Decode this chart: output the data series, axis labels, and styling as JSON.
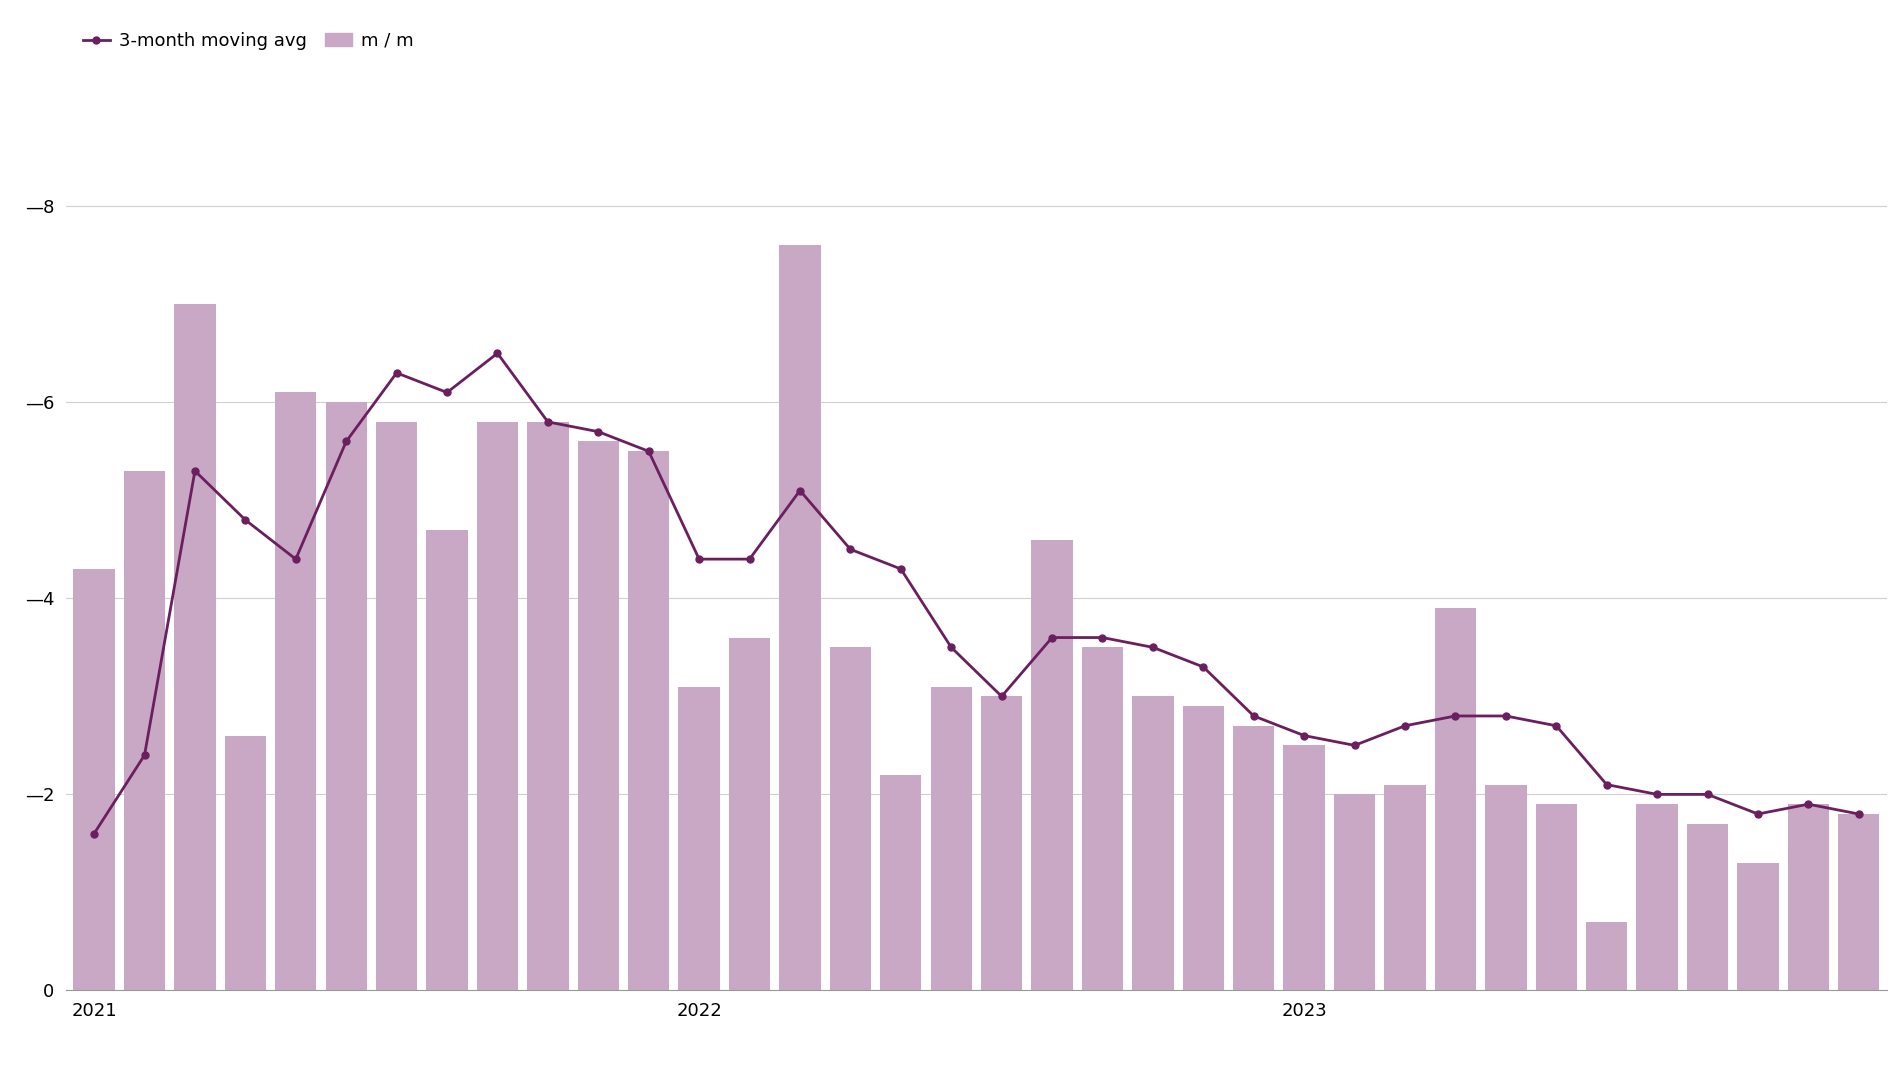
{
  "bar_values": [
    4.3,
    5.3,
    7.0,
    2.6,
    6.1,
    6.0,
    5.8,
    4.7,
    5.8,
    5.8,
    5.6,
    5.5,
    3.1,
    3.6,
    7.6,
    3.5,
    2.2,
    3.1,
    3.0,
    4.6,
    3.5,
    3.0,
    2.9,
    2.7,
    2.5,
    2.0,
    2.1,
    3.9,
    2.1,
    1.9,
    0.7,
    1.9,
    1.7,
    1.3,
    1.9,
    1.8
  ],
  "line_values": [
    1.6,
    2.4,
    5.3,
    4.8,
    4.4,
    5.6,
    6.3,
    6.1,
    6.5,
    5.8,
    5.7,
    5.5,
    4.4,
    4.4,
    5.1,
    4.5,
    4.3,
    3.5,
    3.0,
    3.6,
    3.6,
    3.5,
    3.3,
    2.8,
    2.6,
    2.5,
    2.7,
    2.8,
    2.8,
    2.7,
    2.1,
    2.0,
    2.0,
    1.8,
    1.9,
    1.8
  ],
  "bar_color": "#c9a8c5",
  "line_color": "#6b1f5e",
  "background_color": "#ffffff",
  "grid_color": "#d0d0d0",
  "yticks": [
    0,
    2,
    4,
    6,
    8
  ],
  "ylim": [
    0,
    8.8
  ],
  "n_bars": 36,
  "legend_line_label": "3-month moving avg",
  "legend_bar_label": "m / m",
  "tick_fontsize": 13,
  "legend_fontsize": 13
}
